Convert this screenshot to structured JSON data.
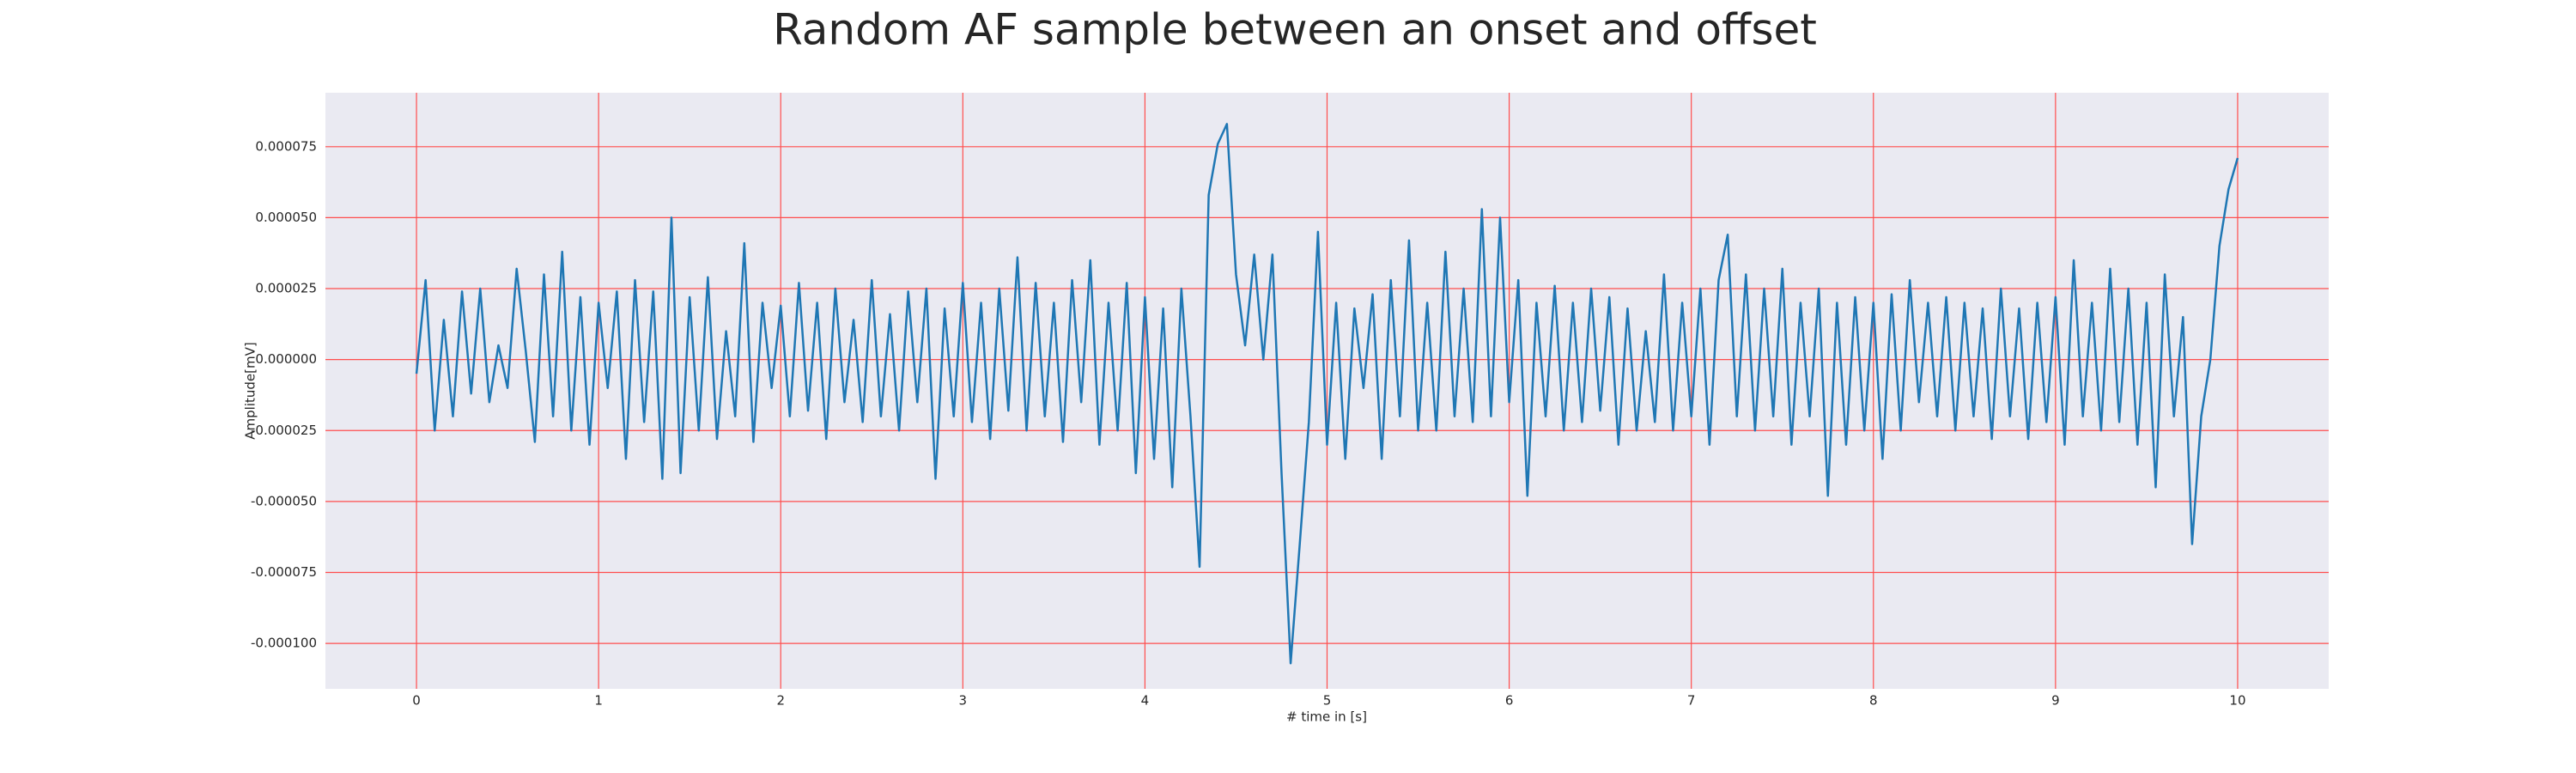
{
  "chart_data": {
    "type": "line",
    "title": "Random AF sample between an onset and offset",
    "xlabel": "# time in [s]",
    "ylabel": "Amplitude[mV]",
    "color": "#1f77b4",
    "grid": true,
    "grid_color": "#ff4d4d",
    "background": "#eaeaf2",
    "xlim": [
      -0.5,
      10.5
    ],
    "ylim": [
      -0.000116,
      9.4e-05
    ],
    "xticks": [
      0,
      1,
      2,
      3,
      4,
      5,
      6,
      7,
      8,
      9,
      10
    ],
    "yticks": [
      {
        "value": -0.0001,
        "label": "-0.000100"
      },
      {
        "value": -7.5e-05,
        "label": "-0.000075"
      },
      {
        "value": -5e-05,
        "label": "-0.000050"
      },
      {
        "value": -2.5e-05,
        "label": "-0.000025"
      },
      {
        "value": 0,
        "label": "0.000000"
      },
      {
        "value": 2.5e-05,
        "label": "0.000025"
      },
      {
        "value": 5e-05,
        "label": "0.000050"
      },
      {
        "value": 7.5e-05,
        "label": "0.000075"
      }
    ],
    "x": [
      0,
      0.05,
      0.1,
      0.15,
      0.2,
      0.25,
      0.3,
      0.35,
      0.4,
      0.45,
      0.5,
      0.55,
      0.6,
      0.65,
      0.7,
      0.75,
      0.8,
      0.85,
      0.9,
      0.95,
      1,
      1.05,
      1.1,
      1.15,
      1.2,
      1.25,
      1.3,
      1.35,
      1.4,
      1.45,
      1.5,
      1.55,
      1.6,
      1.65,
      1.7,
      1.75,
      1.8,
      1.85,
      1.9,
      1.95,
      2,
      2.05,
      2.1,
      2.15,
      2.2,
      2.25,
      2.3,
      2.35,
      2.4,
      2.45,
      2.5,
      2.55,
      2.6,
      2.65,
      2.7,
      2.75,
      2.8,
      2.85,
      2.9,
      2.95,
      3,
      3.05,
      3.1,
      3.15,
      3.2,
      3.25,
      3.3,
      3.35,
      3.4,
      3.45,
      3.5,
      3.55,
      3.6,
      3.65,
      3.7,
      3.75,
      3.8,
      3.85,
      3.9,
      3.95,
      4,
      4.05,
      4.1,
      4.15,
      4.2,
      4.25,
      4.3,
      4.35,
      4.4,
      4.45,
      4.5,
      4.55,
      4.6,
      4.65,
      4.7,
      4.75,
      4.8,
      4.85,
      4.9,
      4.95,
      5,
      5.05,
      5.1,
      5.15,
      5.2,
      5.25,
      5.3,
      5.35,
      5.4,
      5.45,
      5.5,
      5.55,
      5.6,
      5.65,
      5.7,
      5.75,
      5.8,
      5.85,
      5.9,
      5.95,
      6,
      6.05,
      6.1,
      6.15,
      6.2,
      6.25,
      6.3,
      6.35,
      6.4,
      6.45,
      6.5,
      6.55,
      6.6,
      6.65,
      6.7,
      6.75,
      6.8,
      6.85,
      6.9,
      6.95,
      7,
      7.05,
      7.1,
      7.15,
      7.2,
      7.25,
      7.3,
      7.35,
      7.4,
      7.45,
      7.5,
      7.55,
      7.6,
      7.65,
      7.7,
      7.75,
      7.8,
      7.85,
      7.9,
      7.95,
      8,
      8.05,
      8.1,
      8.15,
      8.2,
      8.25,
      8.3,
      8.35,
      8.4,
      8.45,
      8.5,
      8.55,
      8.6,
      8.65,
      8.7,
      8.75,
      8.8,
      8.85,
      8.9,
      8.95,
      9,
      9.05,
      9.1,
      9.15,
      9.2,
      9.25,
      9.3,
      9.35,
      9.4,
      9.45,
      9.5,
      9.55,
      9.6,
      9.65,
      9.7,
      9.75,
      9.8,
      9.85,
      9.9,
      9.95,
      10
    ],
    "values": [
      -5e-06,
      2.8e-05,
      -2.5e-05,
      1.4e-05,
      -2e-05,
      2.4e-05,
      -1.2e-05,
      2.5e-05,
      -1.5e-05,
      5e-06,
      -1e-05,
      3.2e-05,
      3e-06,
      -2.9e-05,
      3e-05,
      -2e-05,
      3.8e-05,
      -2.5e-05,
      2.2e-05,
      -3e-05,
      2e-05,
      -1e-05,
      2.4e-05,
      -3.5e-05,
      2.8e-05,
      -2.2e-05,
      2.4e-05,
      -4.2e-05,
      5e-05,
      -4e-05,
      2.2e-05,
      -2.5e-05,
      2.9e-05,
      -2.8e-05,
      1e-05,
      -2e-05,
      4.1e-05,
      -2.9e-05,
      2e-05,
      -1e-05,
      1.9e-05,
      -2e-05,
      2.7e-05,
      -1.8e-05,
      2e-05,
      -2.8e-05,
      2.5e-05,
      -1.5e-05,
      1.4e-05,
      -2.2e-05,
      2.8e-05,
      -2e-05,
      1.6e-05,
      -2.5e-05,
      2.4e-05,
      -1.5e-05,
      2.5e-05,
      -4.2e-05,
      1.8e-05,
      -2e-05,
      2.7e-05,
      -2.2e-05,
      2e-05,
      -2.8e-05,
      2.5e-05,
      -1.8e-05,
      3.6e-05,
      -2.5e-05,
      2.7e-05,
      -2e-05,
      2e-05,
      -2.9e-05,
      2.8e-05,
      -1.5e-05,
      3.5e-05,
      -3e-05,
      2e-05,
      -2.5e-05,
      2.7e-05,
      -4e-05,
      2.2e-05,
      -3.5e-05,
      1.8e-05,
      -4.5e-05,
      2.5e-05,
      -2e-05,
      -7.3e-05,
      5.8e-05,
      7.6e-05,
      8.3e-05,
      3e-05,
      5e-06,
      3.7e-05,
      0,
      3.7e-05,
      -4e-05,
      -0.000107,
      -6.5e-05,
      -2.2e-05,
      4.5e-05,
      -3e-05,
      2e-05,
      -3.5e-05,
      1.8e-05,
      -1e-05,
      2.3e-05,
      -3.5e-05,
      2.8e-05,
      -2e-05,
      4.2e-05,
      -2.5e-05,
      2e-05,
      -2.5e-05,
      3.8e-05,
      -2e-05,
      2.5e-05,
      -2.2e-05,
      5.3e-05,
      -2e-05,
      5e-05,
      -1.5e-05,
      2.8e-05,
      -4.8e-05,
      2e-05,
      -2e-05,
      2.6e-05,
      -2.5e-05,
      2e-05,
      -2.2e-05,
      2.5e-05,
      -1.8e-05,
      2.2e-05,
      -3e-05,
      1.8e-05,
      -2.5e-05,
      1e-05,
      -2.2e-05,
      3e-05,
      -2.5e-05,
      2e-05,
      -2e-05,
      2.5e-05,
      -3e-05,
      2.8e-05,
      4.4e-05,
      -2e-05,
      3e-05,
      -2.5e-05,
      2.5e-05,
      -2e-05,
      3.2e-05,
      -3e-05,
      2e-05,
      -2e-05,
      2.5e-05,
      -4.8e-05,
      2e-05,
      -3e-05,
      2.2e-05,
      -2.5e-05,
      2e-05,
      -3.5e-05,
      2.3e-05,
      -2.5e-05,
      2.8e-05,
      -1.5e-05,
      2e-05,
      -2e-05,
      2.2e-05,
      -2.5e-05,
      2e-05,
      -2e-05,
      1.8e-05,
      -2.8e-05,
      2.5e-05,
      -2e-05,
      1.8e-05,
      -2.8e-05,
      2e-05,
      -2.2e-05,
      2.2e-05,
      -3e-05,
      3.5e-05,
      -2e-05,
      2e-05,
      -2.5e-05,
      3.2e-05,
      -2.2e-05,
      2.5e-05,
      -3e-05,
      2e-05,
      -4.5e-05,
      3e-05,
      -2e-05,
      1.5e-05,
      -6.5e-05,
      -2e-05,
      0,
      4e-05,
      6e-05,
      7.1e-05
    ]
  }
}
